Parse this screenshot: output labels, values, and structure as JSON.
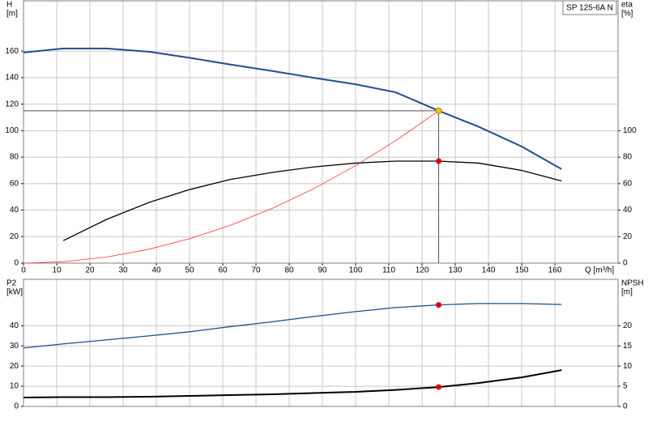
{
  "chart_data": [
    {
      "type": "line",
      "title": "SP 125-6A N",
      "ylabel": [
        "H",
        "[m]"
      ],
      "y2label": [
        "eta",
        "[%]"
      ],
      "xlabel": "Q [m³/h]",
      "xlim": [
        0,
        179
      ],
      "xticks": [
        0,
        10,
        20,
        30,
        40,
        50,
        60,
        70,
        80,
        90,
        100,
        110,
        120,
        130,
        140,
        150,
        160
      ],
      "ylim": [
        0,
        198
      ],
      "yticks": [
        0,
        20,
        40,
        60,
        80,
        100,
        120,
        140,
        160
      ],
      "y2lim": [
        0,
        198
      ],
      "y2ticks": [
        0,
        20,
        40,
        60,
        80,
        100
      ],
      "grid": true,
      "series": [
        {
          "color": "#1f4e8c",
          "width": 2,
          "axis": "y",
          "x": [
            0,
            12,
            25,
            38,
            50,
            62,
            75,
            87,
            100,
            112,
            125,
            137,
            150,
            162
          ],
          "values": [
            159,
            162,
            162,
            159.5,
            155,
            150,
            145,
            140,
            135,
            129,
            115,
            103,
            88,
            71
          ]
        },
        {
          "color": "#000000",
          "width": 1.3,
          "axis": "y2",
          "x": [
            12,
            25,
            38,
            50,
            62,
            75,
            87,
            100,
            112,
            125,
            137,
            150,
            162
          ],
          "values": [
            17,
            33,
            46,
            55.5,
            63,
            68.5,
            72.5,
            75.5,
            77,
            77,
            75.5,
            70,
            62
          ]
        },
        {
          "color": "#ff3030",
          "width": 0.8,
          "axis": "y",
          "x": [
            0,
            12.5,
            25,
            37.5,
            50,
            62.5,
            75,
            87.5,
            100,
            112.5,
            125
          ],
          "values": [
            0,
            1.15,
            4.6,
            10.35,
            18.4,
            28.75,
            41.4,
            56.35,
            73.6,
            93.15,
            115
          ]
        }
      ],
      "markers": [
        {
          "x": 125,
          "value": 115,
          "axis": "y",
          "color": "#ffc800",
          "crosshair": true
        },
        {
          "x": 125,
          "value": 77,
          "axis": "y2",
          "color": "#e00000",
          "crosshair": false
        }
      ]
    },
    {
      "type": "line",
      "ylabel": [
        "P2",
        "[kW]"
      ],
      "y2label": [
        "NPSH",
        "[m]"
      ],
      "xlim": [
        0,
        179
      ],
      "ylim": [
        0,
        63
      ],
      "yticks": [
        0,
        10,
        20,
        30,
        40
      ],
      "y2lim": [
        0,
        31.5
      ],
      "y2ticks": [
        0,
        5,
        10,
        15,
        20
      ],
      "grid": true,
      "series": [
        {
          "color": "#1f4e8c",
          "width": 1.3,
          "axis": "y",
          "x": [
            0,
            12,
            25,
            38,
            50,
            62,
            75,
            87,
            100,
            112,
            125,
            137,
            150,
            162
          ],
          "values": [
            29,
            31,
            33,
            35,
            37,
            39.5,
            42,
            44.5,
            47,
            49,
            50.3,
            51,
            51,
            50.5
          ]
        },
        {
          "color": "#000000",
          "width": 2,
          "axis": "y2",
          "x": [
            0,
            12,
            25,
            38,
            50,
            62,
            75,
            87,
            100,
            112,
            125,
            137,
            150,
            162
          ],
          "values": [
            2.2,
            2.3,
            2.3,
            2.4,
            2.6,
            2.8,
            3,
            3.3,
            3.6,
            4.1,
            4.8,
            5.8,
            7.2,
            9
          ]
        }
      ],
      "markers": [
        {
          "x": 125,
          "value": 50.3,
          "axis": "y",
          "color": "#e00000",
          "crosshair": false
        },
        {
          "x": 125,
          "value": 4.8,
          "axis": "y2",
          "color": "#e00000",
          "crosshair": false
        }
      ]
    }
  ]
}
